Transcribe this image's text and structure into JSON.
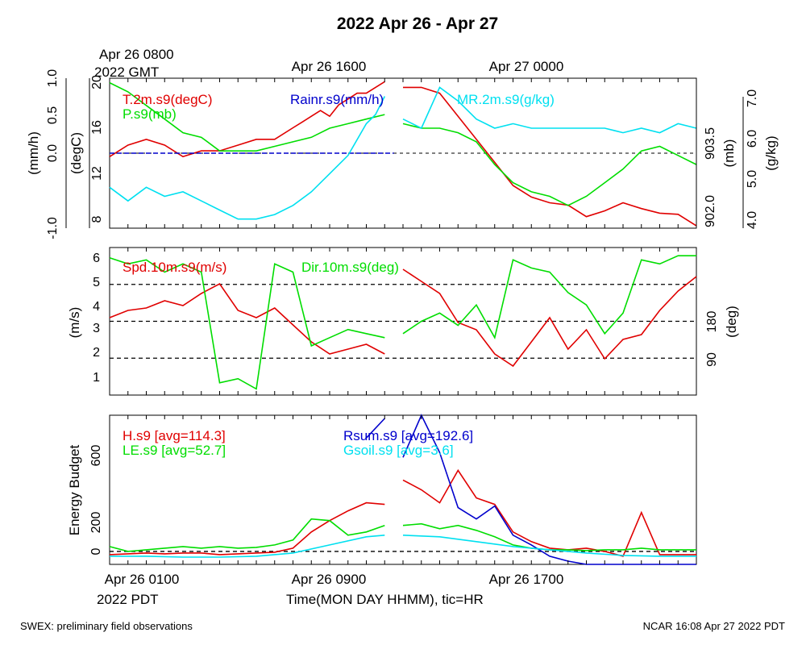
{
  "title": "2022 Apr 26 - Apr 27",
  "top_time_labels": {
    "gmt_first_line1": "Apr 26 0800",
    "gmt_first_line2": "2022 GMT",
    "gmt_mid": "Apr 26 1600",
    "gmt_last": "Apr 27 0000"
  },
  "bottom_time_labels": {
    "pdt_first_line1": "Apr 26 0100",
    "pdt_first_line2": "2022 PDT",
    "pdt_mid": "Apr 26 0900",
    "pdt_last": "Apr 26 1700"
  },
  "x_axis_label": "Time(MON DAY HHMM), tic=HR",
  "footer_left": "SWEX: preliminary field observations",
  "footer_right": "NCAR 16:08 Apr 27 2022 PDT",
  "colors": {
    "red": "#e00000",
    "green": "#00dd00",
    "blue": "#0000cc",
    "cyan": "#00e0f0",
    "black": "#000000"
  },
  "chart_data": [
    {
      "type": "line",
      "panel": "top",
      "x_unit": "hours since Apr 26 0100 PDT",
      "xlim": [
        0,
        32
      ],
      "axes": {
        "rain": {
          "label": "(mm/h)",
          "ticks": [
            "-1.0",
            "0.0",
            "0.5",
            "1.0"
          ],
          "ylim": [
            -1,
            1
          ]
        },
        "temp": {
          "label": "(degC)",
          "ticks": [
            "8",
            "12",
            "16",
            "20"
          ],
          "ylim": [
            7.3,
            20.3
          ]
        },
        "press": {
          "label": "(mb)",
          "ticks": [
            "902.0",
            "903.5"
          ],
          "ylim": [
            901.6,
            904.9
          ]
        },
        "mr": {
          "label": "(g/kg)",
          "ticks": [
            "4.0",
            "5.0",
            "6.0",
            "7.0"
          ],
          "ylim": [
            4,
            7.3
          ]
        }
      },
      "series": [
        {
          "name": "T.2m.s9(degC)",
          "color": "#e00000",
          "axis": "temp",
          "x": [
            0,
            1,
            2,
            3,
            4,
            5,
            6,
            7,
            8,
            9,
            10,
            10.5,
            11,
            11.5,
            12,
            12.5,
            13,
            13.5,
            14,
            14.5,
            15,
            15.5,
            16,
            17,
            18,
            19,
            20,
            21,
            22,
            23,
            24,
            25,
            26,
            27,
            28,
            29,
            30,
            31,
            32
          ],
          "y": [
            13.5,
            14.5,
            15,
            14.5,
            13.5,
            14,
            14,
            14.5,
            15,
            15,
            16,
            16.5,
            17,
            17.5,
            17,
            18,
            18.5,
            19,
            19,
            19.5,
            20,
            null,
            19.5,
            19.5,
            19,
            17,
            15,
            13,
            11,
            10,
            9.5,
            9.3,
            8.3,
            8.8,
            9.5,
            9,
            8.6,
            8.5,
            7.5
          ]
        },
        {
          "name": "P.s9(mb)",
          "color": "#00dd00",
          "axis": "press",
          "x": [
            0,
            1,
            2,
            3,
            4,
            5,
            6,
            7,
            8,
            9,
            10,
            11,
            12,
            13,
            14,
            15,
            15.5,
            16,
            17,
            18,
            19,
            20,
            21,
            22,
            23,
            24,
            25,
            26,
            27,
            28,
            29,
            30,
            31,
            32
          ],
          "y": [
            904.8,
            904.6,
            904.3,
            904.0,
            903.7,
            903.6,
            903.3,
            903.3,
            903.3,
            903.4,
            903.5,
            903.6,
            903.8,
            903.9,
            904.0,
            904.1,
            null,
            903.9,
            903.8,
            903.8,
            903.7,
            903.5,
            903.0,
            902.6,
            902.4,
            902.3,
            902.1,
            902.3,
            902.6,
            902.9,
            903.3,
            903.4,
            903.2,
            903.0
          ]
        },
        {
          "name": "Rainr.s9(mm/h)",
          "color": "#0000cc",
          "axis": "rain",
          "x": [
            0,
            15.5,
            16,
            32
          ],
          "y": [
            0,
            0,
            null,
            0
          ]
        },
        {
          "name": "MR.2m.s9(g/kg)",
          "color": "#00e0f0",
          "axis": "mr",
          "x": [
            0,
            1,
            2,
            3,
            4,
            5,
            6,
            7,
            8,
            9,
            10,
            11,
            12,
            13,
            14,
            14.5,
            15,
            15.5,
            16,
            17,
            18,
            19,
            20,
            21,
            22,
            23,
            24,
            25,
            26,
            27,
            28,
            29,
            30,
            31,
            32
          ],
          "y": [
            4.9,
            4.6,
            4.9,
            4.7,
            4.8,
            4.6,
            4.4,
            4.2,
            4.2,
            4.3,
            4.5,
            4.8,
            5.2,
            5.6,
            6.3,
            6.5,
            6.9,
            null,
            6.4,
            6.2,
            7.1,
            6.8,
            6.4,
            6.2,
            6.3,
            6.2,
            6.2,
            6.2,
            6.2,
            6.2,
            6.1,
            6.2,
            6.1,
            6.3,
            6.2
          ]
        }
      ]
    },
    {
      "type": "line",
      "panel": "middle",
      "xlim": [
        0,
        32
      ],
      "axes": {
        "speed": {
          "label": "(m/s)",
          "ticks": [
            "1",
            "2",
            "3",
            "4",
            "5",
            "6"
          ],
          "ylim": [
            0.3,
            6.4
          ]
        },
        "dir": {
          "label": "(deg)",
          "ticks": [
            "90",
            "180"
          ],
          "ylim": [
            0,
            360
          ]
        }
      },
      "reference_lines_deg": [
        90,
        180,
        270
      ],
      "series": [
        {
          "name": "Spd.10m.s9(m/s)",
          "color": "#e00000",
          "axis": "speed",
          "x": [
            0,
            1,
            2,
            3,
            4,
            5,
            6,
            7,
            8,
            9,
            10,
            11,
            12,
            13,
            14,
            15,
            15.5,
            16,
            17,
            18,
            19,
            20,
            21,
            22,
            23,
            24,
            25,
            26,
            27,
            28,
            29,
            30,
            31,
            32
          ],
          "y": [
            3.5,
            3.8,
            3.9,
            4.2,
            4.0,
            4.5,
            4.9,
            3.8,
            3.5,
            3.9,
            3.2,
            2.5,
            2.0,
            2.2,
            2.4,
            2.0,
            null,
            5.5,
            5.0,
            4.5,
            3.3,
            3.0,
            2.0,
            1.5,
            2.5,
            3.5,
            2.2,
            3.0,
            1.8,
            2.6,
            2.8,
            3.8,
            4.6,
            5.2
          ]
        },
        {
          "name": "Dir.10m.s9(deg)",
          "color": "#00dd00",
          "axis": "dir",
          "x": [
            0,
            1,
            2,
            3,
            4,
            5,
            6,
            7,
            8,
            9,
            10,
            11,
            12,
            13,
            14,
            15,
            15.5,
            16,
            17,
            18,
            19,
            20,
            21,
            22,
            23,
            24,
            25,
            26,
            27,
            28,
            29,
            30,
            31,
            32
          ],
          "y": [
            335,
            320,
            330,
            300,
            320,
            300,
            30,
            40,
            15,
            320,
            300,
            120,
            140,
            160,
            150,
            140,
            null,
            150,
            180,
            200,
            170,
            220,
            140,
            330,
            310,
            300,
            250,
            220,
            150,
            200,
            330,
            320,
            340,
            340
          ]
        }
      ]
    },
    {
      "type": "line",
      "panel": "bottom",
      "xlim": [
        0,
        32
      ],
      "axes": {
        "energy": {
          "label": "Energy Budget",
          "ticks": [
            "0",
            "200",
            "600"
          ],
          "ylim": [
            -80,
            840
          ]
        }
      },
      "reference_lines": [
        0
      ],
      "series": [
        {
          "name": "H.s9 [avg=114.3]",
          "color": "#e00000",
          "x": [
            0,
            1,
            2,
            3,
            4,
            5,
            6,
            7,
            8,
            9,
            10,
            11,
            12,
            13,
            14,
            15,
            15.5,
            16,
            17,
            18,
            19,
            20,
            21,
            22,
            23,
            24,
            25,
            26,
            27,
            28,
            29,
            30,
            31,
            32
          ],
          "y": [
            -20,
            -15,
            -10,
            -15,
            -10,
            -10,
            -20,
            -15,
            -10,
            -5,
            20,
            120,
            190,
            250,
            300,
            290,
            null,
            440,
            380,
            300,
            500,
            330,
            290,
            120,
            60,
            20,
            10,
            20,
            0,
            -30,
            240,
            -20,
            -20,
            -20
          ]
        },
        {
          "name": "LE.s9 [avg=52.7]",
          "color": "#00dd00",
          "x": [
            0,
            1,
            2,
            3,
            4,
            5,
            6,
            7,
            8,
            9,
            10,
            11,
            12,
            13,
            14,
            15,
            15.5,
            16,
            17,
            18,
            19,
            20,
            21,
            22,
            23,
            24,
            25,
            26,
            27,
            28,
            29,
            30,
            31,
            32
          ],
          "y": [
            30,
            0,
            10,
            20,
            30,
            20,
            30,
            20,
            25,
            40,
            70,
            200,
            190,
            100,
            120,
            160,
            null,
            160,
            170,
            140,
            160,
            130,
            90,
            40,
            20,
            10,
            10,
            5,
            10,
            10,
            20,
            10,
            10,
            10
          ]
        },
        {
          "name": "Rsum.s9 [avg=192.6]",
          "color": "#0000cc",
          "x": [
            14,
            15,
            15.5,
            16,
            17,
            18,
            19,
            20,
            21,
            22,
            23,
            24,
            25,
            26,
            27,
            28,
            29,
            30,
            31,
            32
          ],
          "y": [
            700,
            820,
            null,
            580,
            840,
            610,
            270,
            200,
            280,
            100,
            40,
            -30,
            -60,
            -80,
            -80,
            -80,
            -80,
            -80,
            -80,
            -80
          ]
        },
        {
          "name": "Gsoil.s9 [avg=3.6]",
          "color": "#00e0f0",
          "x": [
            0,
            2,
            4,
            6,
            8,
            10,
            12,
            14,
            15,
            15.5,
            16,
            18,
            20,
            22,
            24,
            26,
            28,
            30,
            32
          ],
          "y": [
            -30,
            -30,
            -35,
            -35,
            -30,
            -10,
            40,
            90,
            100,
            null,
            100,
            90,
            60,
            30,
            10,
            -10,
            -25,
            -30,
            -30
          ]
        }
      ]
    }
  ]
}
